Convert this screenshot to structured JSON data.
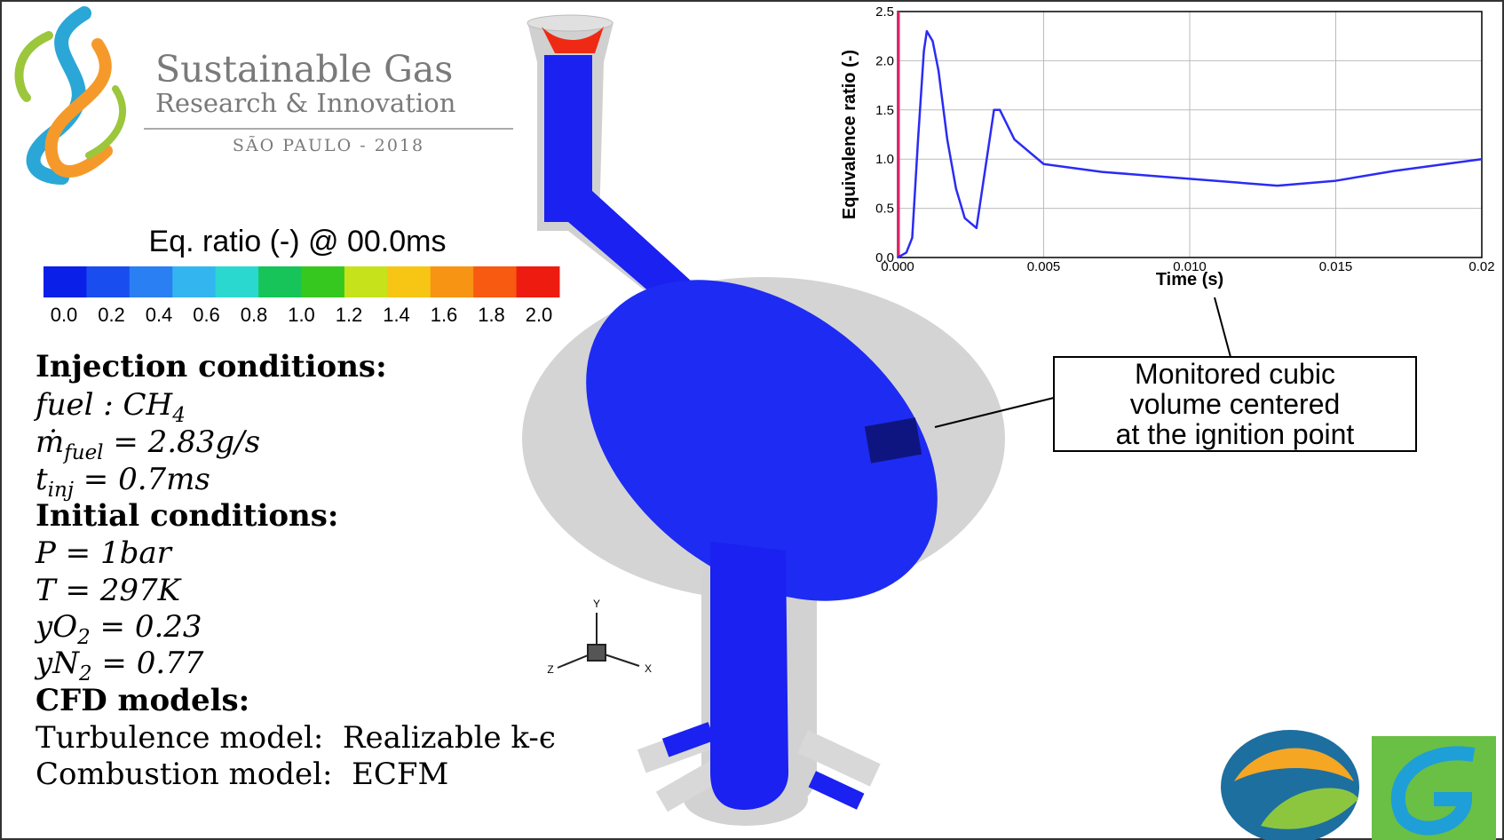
{
  "header": {
    "title": "Sustainable Gas",
    "subtitle": "Research & Innovation",
    "place": "SÃO PAULO - 2018"
  },
  "colorbar": {
    "title": "Eq. ratio (-) @ 00.0ms",
    "colors": [
      "#0a1fe8",
      "#1a4df0",
      "#2a7ff2",
      "#33b6f0",
      "#2ad8d0",
      "#17c45a",
      "#36c81e",
      "#c6e21a",
      "#f7c614",
      "#f79414",
      "#f75a10",
      "#ee1c10"
    ],
    "ticks": [
      {
        "value": 0,
        "label": "0.0"
      },
      0.2,
      0.4,
      0.6,
      0.8,
      {
        "value": 1,
        "label": "1.0"
      },
      1.2,
      1.4,
      1.6,
      1.8,
      {
        "value": 2,
        "label": "2.0"
      }
    ]
  },
  "conditions": {
    "lines": [
      {
        "style": "heading",
        "parts": [
          {
            "text": "Injection conditions:"
          }
        ]
      },
      {
        "style": "math",
        "parts": [
          {
            "text": "fuel : CH"
          },
          {
            "text": "4",
            "sub": true
          }
        ]
      },
      {
        "style": "math",
        "parts": [
          {
            "text": "ṁ"
          },
          {
            "text": "fuel",
            "sub": true
          },
          {
            "text": " = 2.83g/s"
          }
        ]
      },
      {
        "style": "math",
        "parts": [
          {
            "text": "t"
          },
          {
            "text": "inj",
            "sub": true
          },
          {
            "text": " = 0.7ms"
          }
        ]
      },
      {
        "style": "heading",
        "parts": [
          {
            "text": "Initial conditions:"
          }
        ]
      },
      {
        "style": "math",
        "parts": [
          {
            "text": "P = 1bar"
          }
        ]
      },
      {
        "style": "math",
        "parts": [
          {
            "text": "T = 297K"
          }
        ]
      },
      {
        "style": "math",
        "parts": [
          {
            "text": "yO"
          },
          {
            "text": "2",
            "sub": true
          },
          {
            "text": " = 0.23"
          }
        ]
      },
      {
        "style": "math",
        "parts": [
          {
            "text": "yN"
          },
          {
            "text": "2",
            "sub": true
          },
          {
            "text": " = 0.77"
          }
        ]
      },
      {
        "style": "heading",
        "parts": [
          {
            "text": "CFD models:"
          }
        ]
      },
      {
        "style": "plain",
        "parts": [
          {
            "text": "Turbulence model:  Realizable k-ϵ"
          }
        ]
      },
      {
        "style": "plain",
        "parts": [
          {
            "text": "Combustion model:  ECFM"
          }
        ]
      }
    ]
  },
  "triad": {
    "y": "Y",
    "z": "Z",
    "x": "X"
  },
  "annotation": {
    "lines": [
      "Monitored cubic",
      "volume centered",
      "at the ignition point"
    ]
  },
  "chart_data": {
    "type": "line",
    "x_label": "Time (s)",
    "y_label": "Equivalence ratio (-)",
    "color": "#2b2bf5",
    "grid": true,
    "x": [
      0,
      0.0003,
      0.0005,
      0.0007,
      0.0009,
      0.001,
      0.0012,
      0.0014,
      0.0017,
      0.002,
      0.0023,
      0.0027,
      0.003,
      0.0033,
      0.0035,
      0.004,
      0.005,
      0.007,
      0.01,
      0.013,
      0.015,
      0.017,
      0.019,
      0.02
    ],
    "values": [
      0,
      0.05,
      0.2,
      1.2,
      2.1,
      2.3,
      2.2,
      1.9,
      1.2,
      0.7,
      0.4,
      0.3,
      0.9,
      1.5,
      1.5,
      1.2,
      0.95,
      0.87,
      0.8,
      0.73,
      0.78,
      0.88,
      0.96,
      1.0
    ],
    "xlim": [
      0,
      0.02
    ],
    "ylim": [
      0,
      2.5
    ],
    "xticks": [
      {
        "value": 0,
        "label": "0.000"
      },
      0.005,
      {
        "value": 0.01,
        "label": "0.010"
      },
      0.015,
      0.02
    ],
    "yticks": [
      {
        "value": 0,
        "label": "0.0"
      },
      0.5,
      {
        "value": 1,
        "label": "1.0"
      },
      1.5,
      {
        "value": 2,
        "label": "2.0"
      },
      2.5
    ]
  }
}
